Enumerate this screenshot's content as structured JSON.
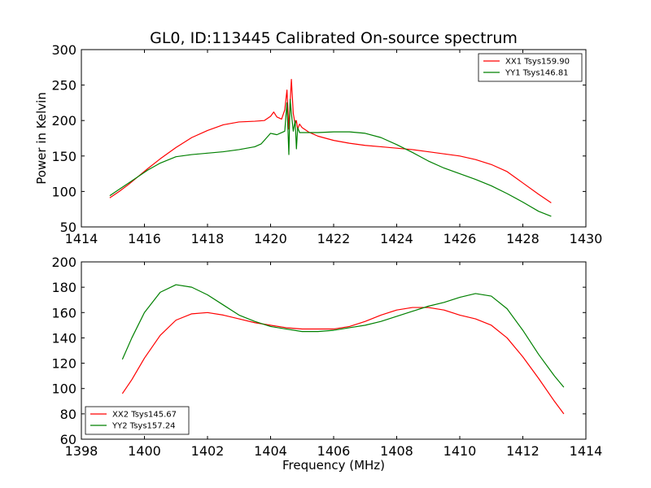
{
  "chart_data": [
    {
      "type": "line",
      "title": "GL0, ID:113445 Calibrated On-source spectrum",
      "xlabel": "",
      "ylabel": "Power in Kelvin",
      "xlim": [
        1414,
        1430
      ],
      "ylim": [
        50,
        300
      ],
      "xticks": [
        1414,
        1416,
        1418,
        1420,
        1422,
        1424,
        1426,
        1428,
        1430
      ],
      "yticks": [
        50,
        100,
        150,
        200,
        250,
        300
      ],
      "grid": false,
      "legend_position": "top-right",
      "series": [
        {
          "name": "XX1 Tsys159.90",
          "color": "#ff0000",
          "x": [
            1414.9,
            1415.2,
            1415.5,
            1415.8,
            1416.1,
            1416.5,
            1417.0,
            1417.5,
            1418.0,
            1418.5,
            1419.0,
            1419.5,
            1419.8,
            1420.0,
            1420.1,
            1420.2,
            1420.35,
            1420.45,
            1420.52,
            1420.58,
            1420.62,
            1420.66,
            1420.72,
            1420.78,
            1420.82,
            1420.86,
            1420.92,
            1421.0,
            1421.2,
            1421.5,
            1422.0,
            1422.5,
            1423.0,
            1423.5,
            1424.0,
            1424.5,
            1425.0,
            1425.5,
            1426.0,
            1426.5,
            1427.0,
            1427.5,
            1428.0,
            1428.5,
            1428.9
          ],
          "y": [
            91,
            100,
            110,
            121,
            132,
            146,
            162,
            176,
            186,
            194,
            198,
            199,
            200,
            206,
            212,
            205,
            202,
            215,
            243,
            188,
            225,
            258,
            210,
            195,
            200,
            188,
            195,
            190,
            184,
            178,
            172,
            168,
            165,
            163,
            161,
            159,
            156,
            153,
            150,
            145,
            138,
            128,
            112,
            96,
            84
          ]
        },
        {
          "name": "YY1 Tsys146.81",
          "color": "#008000",
          "x": [
            1414.9,
            1415.2,
            1415.5,
            1415.8,
            1416.1,
            1416.5,
            1417.0,
            1417.5,
            1418.0,
            1418.5,
            1419.0,
            1419.5,
            1419.7,
            1419.9,
            1420.0,
            1420.1,
            1420.2,
            1420.35,
            1420.45,
            1420.52,
            1420.58,
            1420.62,
            1420.66,
            1420.72,
            1420.78,
            1420.82,
            1420.86,
            1420.92,
            1421.0,
            1421.5,
            1422.0,
            1422.5,
            1423.0,
            1423.5,
            1424.0,
            1424.5,
            1425.0,
            1425.5,
            1426.0,
            1426.5,
            1427.0,
            1427.5,
            1428.0,
            1428.5,
            1428.9
          ],
          "y": [
            94,
            103,
            112,
            121,
            130,
            140,
            149,
            152,
            154,
            156,
            159,
            163,
            167,
            177,
            182,
            181,
            180,
            183,
            185,
            225,
            152,
            230,
            210,
            185,
            200,
            160,
            190,
            183,
            183,
            183,
            184,
            184,
            182,
            176,
            166,
            155,
            143,
            133,
            125,
            117,
            108,
            97,
            85,
            72,
            65
          ]
        }
      ]
    },
    {
      "type": "line",
      "title": "",
      "xlabel": "Frequency (MHz)",
      "ylabel": "",
      "xlim": [
        1398,
        1414
      ],
      "ylim": [
        60,
        200
      ],
      "xticks": [
        1398,
        1400,
        1402,
        1404,
        1406,
        1408,
        1410,
        1412,
        1414
      ],
      "yticks": [
        60,
        80,
        100,
        120,
        140,
        160,
        180,
        200
      ],
      "grid": false,
      "legend_position": "bottom-left",
      "series": [
        {
          "name": "XX2 Tsys145.67",
          "color": "#ff0000",
          "x": [
            1399.3,
            1399.6,
            1400.0,
            1400.5,
            1401.0,
            1401.5,
            1402.0,
            1402.5,
            1403.0,
            1403.5,
            1404.0,
            1404.5,
            1405.0,
            1405.5,
            1406.0,
            1406.5,
            1407.0,
            1407.5,
            1408.0,
            1408.5,
            1409.0,
            1409.5,
            1410.0,
            1410.5,
            1411.0,
            1411.5,
            1412.0,
            1412.5,
            1413.0,
            1413.3
          ],
          "y": [
            96,
            107,
            124,
            142,
            154,
            159,
            160,
            158,
            155,
            152,
            150,
            148,
            147,
            147,
            147,
            149,
            153,
            158,
            162,
            164,
            164,
            162,
            158,
            155,
            150,
            140,
            125,
            108,
            90,
            80
          ]
        },
        {
          "name": "YY2 Tsys157.24",
          "color": "#008000",
          "x": [
            1399.3,
            1399.6,
            1400.0,
            1400.5,
            1401.0,
            1401.5,
            1402.0,
            1402.5,
            1403.0,
            1403.5,
            1404.0,
            1404.5,
            1405.0,
            1405.5,
            1406.0,
            1406.5,
            1407.0,
            1407.5,
            1408.0,
            1408.5,
            1409.0,
            1409.5,
            1410.0,
            1410.5,
            1411.0,
            1411.5,
            1412.0,
            1412.5,
            1413.0,
            1413.3
          ],
          "y": [
            123,
            140,
            160,
            176,
            182,
            180,
            174,
            166,
            158,
            153,
            149,
            147,
            145,
            145,
            146,
            148,
            150,
            153,
            157,
            161,
            165,
            168,
            172,
            175,
            173,
            163,
            146,
            127,
            110,
            101
          ]
        }
      ]
    }
  ]
}
